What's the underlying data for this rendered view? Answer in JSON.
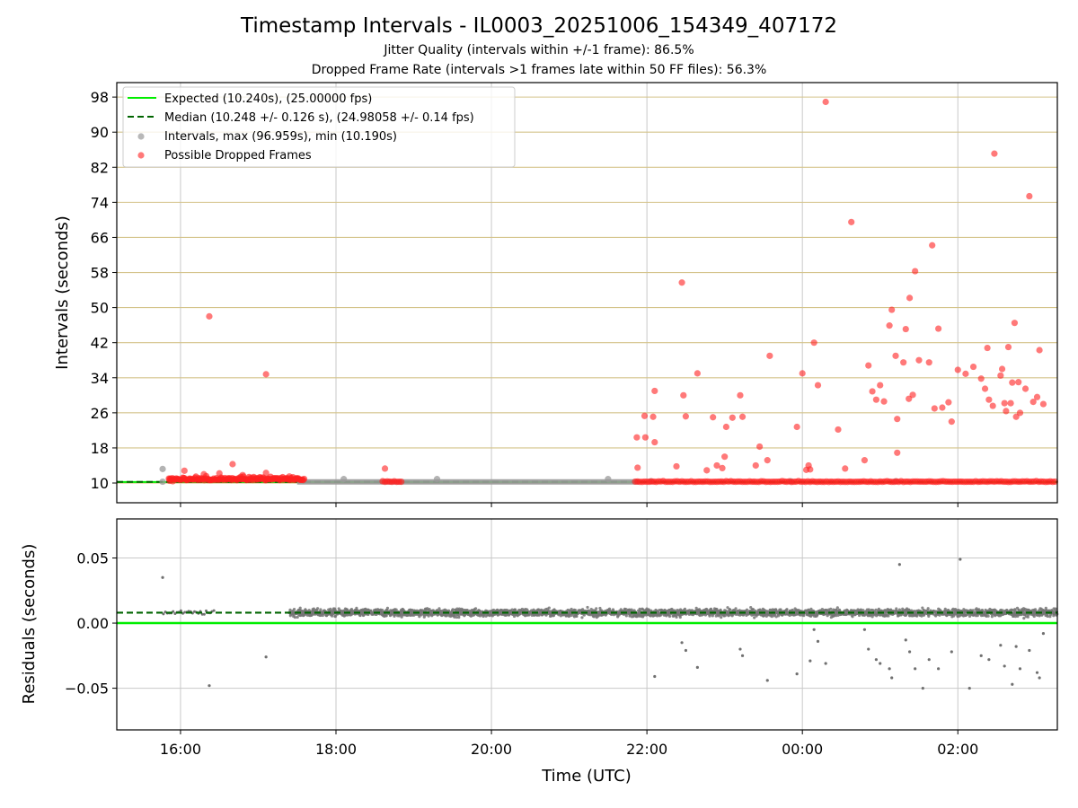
{
  "chart_data": {
    "type": "scatter",
    "title": "Timestamp Intervals - IL0003_20251006_154349_407172",
    "subtitle_1": "Jitter Quality (intervals within +/-1 frame): 86.5%",
    "subtitle_2": "Dropped Frame Rate (intervals >1 frames late within 50 FF files): 56.3%",
    "xlabel": "Time (UTC)",
    "x_tick_labels": [
      "16:00",
      "18:00",
      "20:00",
      "22:00",
      "00:00",
      "02:00"
    ],
    "x_tick_hours": [
      16,
      18,
      20,
      22,
      24,
      26
    ],
    "xlim_hours": [
      15.18,
      27.28
    ],
    "colors": {
      "expected": "#00ee00",
      "median": "#006400",
      "intervals": "#9a9a9a",
      "dropped": "#ff2020",
      "grid_top": "#d4c38a",
      "grid_bottom": "#c8c8c8"
    },
    "top": {
      "ylabel": "Intervals (seconds)",
      "ylim": [
        5.5,
        101.3
      ],
      "yticks": [
        10,
        18,
        26,
        34,
        42,
        50,
        58,
        66,
        74,
        82,
        90,
        98
      ],
      "expected": 10.24,
      "median": 10.248,
      "legend": [
        "Expected (10.240s), (25.00000 fps)",
        "Median (10.248 +/- 0.126 s), (24.98058 +/- 0.14 fps)",
        "Intervals, max (96.959s), min (10.190s)",
        "Possible Dropped Frames"
      ],
      "interval_points": [
        [
          15.77,
          13.2
        ],
        [
          15.77,
          10.3
        ],
        [
          18.1,
          10.9
        ],
        [
          19.3,
          10.9
        ],
        [
          21.5,
          10.9
        ],
        [
          22.05,
          10.4
        ],
        [
          23.85,
          10.4
        ],
        [
          25.2,
          10.4
        ]
      ],
      "dropped_points": [
        [
          16.37,
          48.0
        ],
        [
          17.1,
          34.8
        ],
        [
          16.67,
          14.3
        ],
        [
          16.05,
          12.8
        ],
        [
          17.1,
          12.3
        ],
        [
          16.3,
          12.0
        ],
        [
          16.5,
          12.2
        ],
        [
          16.8,
          11.8
        ],
        [
          17.4,
          11.5
        ],
        [
          18.63,
          13.3
        ],
        [
          15.86,
          10.5
        ],
        [
          15.9,
          10.4
        ],
        [
          21.87,
          20.4
        ],
        [
          21.98,
          20.4
        ],
        [
          21.88,
          13.5
        ],
        [
          21.97,
          25.3
        ],
        [
          22.08,
          25.1
        ],
        [
          22.1,
          19.3
        ],
        [
          22.1,
          31.0
        ],
        [
          22.45,
          55.7
        ],
        [
          22.47,
          30.0
        ],
        [
          22.65,
          35.0
        ],
        [
          22.5,
          25.2
        ],
        [
          22.38,
          13.8
        ],
        [
          22.77,
          12.9
        ],
        [
          22.85,
          25.0
        ],
        [
          22.9,
          14.0
        ],
        [
          22.97,
          13.4
        ],
        [
          23.02,
          22.8
        ],
        [
          23.0,
          16.0
        ],
        [
          23.1,
          24.9
        ],
        [
          23.23,
          25.1
        ],
        [
          23.2,
          30.0
        ],
        [
          23.4,
          14.0
        ],
        [
          23.45,
          18.3
        ],
        [
          23.58,
          39.0
        ],
        [
          23.55,
          15.2
        ],
        [
          23.93,
          22.8
        ],
        [
          24.0,
          35.0
        ],
        [
          24.05,
          13.0
        ],
        [
          24.08,
          14.0
        ],
        [
          24.1,
          13.1
        ],
        [
          24.15,
          42.0
        ],
        [
          24.2,
          32.3
        ],
        [
          24.3,
          96.9
        ],
        [
          24.46,
          22.2
        ],
        [
          24.55,
          13.3
        ],
        [
          24.63,
          69.5
        ],
        [
          24.8,
          15.2
        ],
        [
          24.85,
          36.8
        ],
        [
          24.9,
          30.9
        ],
        [
          24.95,
          29.0
        ],
        [
          25.0,
          32.3
        ],
        [
          25.05,
          28.6
        ],
        [
          25.12,
          45.9
        ],
        [
          25.15,
          49.5
        ],
        [
          25.2,
          39.0
        ],
        [
          25.22,
          24.6
        ],
        [
          25.22,
          16.9
        ],
        [
          25.3,
          37.5
        ],
        [
          25.33,
          45.1
        ],
        [
          25.37,
          29.2
        ],
        [
          25.38,
          52.2
        ],
        [
          25.42,
          30.1
        ],
        [
          25.45,
          58.3
        ],
        [
          25.5,
          38.0
        ],
        [
          25.63,
          37.5
        ],
        [
          25.67,
          64.2
        ],
        [
          25.7,
          27.0
        ],
        [
          25.75,
          45.2
        ],
        [
          25.8,
          27.2
        ],
        [
          25.88,
          28.4
        ],
        [
          25.92,
          24.0
        ],
        [
          26.0,
          35.8
        ],
        [
          26.1,
          34.9
        ],
        [
          26.2,
          36.5
        ],
        [
          26.3,
          33.8
        ],
        [
          26.35,
          31.5
        ],
        [
          26.38,
          40.8
        ],
        [
          26.4,
          29.0
        ],
        [
          26.45,
          27.6
        ],
        [
          26.47,
          85.1
        ],
        [
          26.55,
          34.5
        ],
        [
          26.57,
          36.0
        ],
        [
          26.6,
          28.2
        ],
        [
          26.62,
          26.4
        ],
        [
          26.65,
          41.0
        ],
        [
          26.68,
          28.2
        ],
        [
          26.7,
          32.9
        ],
        [
          26.73,
          46.5
        ],
        [
          26.75,
          25.1
        ],
        [
          26.78,
          33.0
        ],
        [
          26.8,
          26.0
        ],
        [
          26.87,
          31.5
        ],
        [
          26.92,
          75.4
        ],
        [
          26.97,
          28.5
        ],
        [
          27.02,
          29.6
        ],
        [
          27.05,
          40.3
        ],
        [
          27.1,
          28.0
        ]
      ],
      "dropped_bands": [
        [
          15.85,
          17.6
        ],
        [
          18.6,
          18.85
        ],
        [
          21.85,
          27.28
        ]
      ]
    },
    "bottom": {
      "ylabel": "Residuals (seconds)",
      "ylim": [
        -0.082,
        0.08
      ],
      "yticks": [
        0.05,
        0.0,
        -0.05
      ],
      "ytick_labels": [
        "0.05",
        "0.00",
        "−0.05"
      ],
      "expected": 0.0,
      "median": 0.008,
      "band_range": [
        17.4,
        27.28
      ],
      "early_range": [
        15.78,
        16.45
      ],
      "outliers": [
        [
          15.77,
          0.035
        ],
        [
          17.1,
          -0.026
        ],
        [
          16.37,
          -0.048
        ],
        [
          22.1,
          -0.041
        ],
        [
          22.45,
          -0.015
        ],
        [
          22.5,
          -0.021
        ],
        [
          22.65,
          -0.034
        ],
        [
          23.2,
          -0.02
        ],
        [
          23.23,
          -0.025
        ],
        [
          23.55,
          -0.044
        ],
        [
          23.93,
          -0.039
        ],
        [
          24.1,
          -0.029
        ],
        [
          24.15,
          -0.005
        ],
        [
          24.2,
          -0.014
        ],
        [
          24.3,
          -0.031
        ],
        [
          24.8,
          -0.005
        ],
        [
          24.85,
          -0.02
        ],
        [
          24.95,
          -0.028
        ],
        [
          25.0,
          -0.031
        ],
        [
          25.12,
          -0.035
        ],
        [
          25.15,
          -0.042
        ],
        [
          25.25,
          0.045
        ],
        [
          25.33,
          -0.013
        ],
        [
          25.38,
          -0.022
        ],
        [
          25.45,
          -0.035
        ],
        [
          25.55,
          -0.05
        ],
        [
          25.63,
          -0.028
        ],
        [
          25.75,
          -0.035
        ],
        [
          25.92,
          -0.022
        ],
        [
          26.03,
          0.049
        ],
        [
          26.15,
          -0.05
        ],
        [
          26.3,
          -0.025
        ],
        [
          26.4,
          -0.028
        ],
        [
          26.55,
          -0.017
        ],
        [
          26.6,
          -0.033
        ],
        [
          26.7,
          -0.047
        ],
        [
          26.75,
          -0.018
        ],
        [
          26.8,
          -0.035
        ],
        [
          26.92,
          -0.021
        ],
        [
          27.02,
          -0.038
        ],
        [
          27.05,
          -0.042
        ],
        [
          27.1,
          -0.008
        ]
      ]
    }
  }
}
